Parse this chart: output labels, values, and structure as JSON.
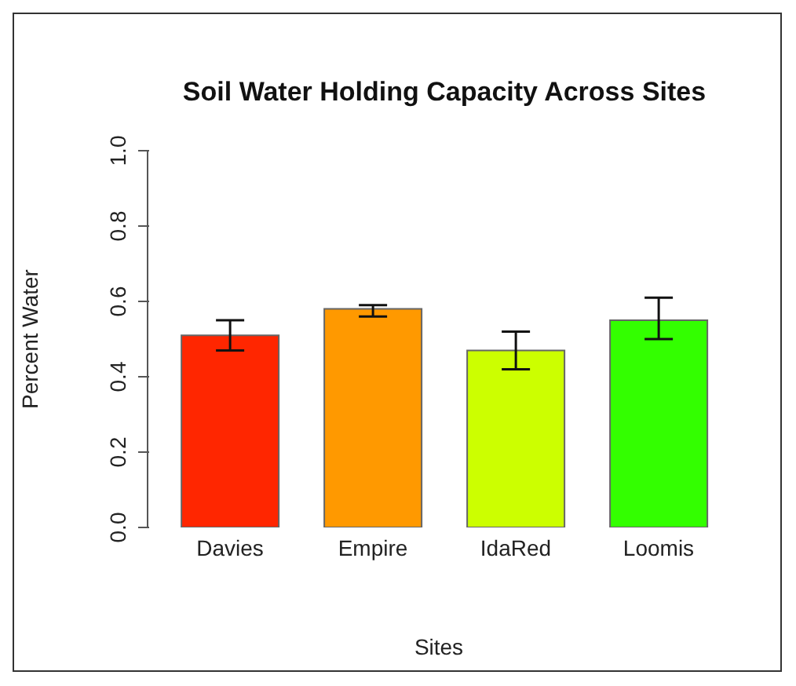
{
  "chart_data": {
    "type": "bar",
    "title": "Soil Water Holding Capacity Across Sites",
    "xlabel": "Sites",
    "ylabel": "Percent Water",
    "categories": [
      "Davies",
      "Empire",
      "IdaRed",
      "Loomis"
    ],
    "values": [
      0.51,
      0.58,
      0.47,
      0.55
    ],
    "colors": [
      "#ff2600",
      "#ff9900",
      "#ccff00",
      "#33ff00"
    ],
    "errors": [
      [
        0.47,
        0.55
      ],
      [
        0.56,
        0.59
      ],
      [
        0.42,
        0.52
      ],
      [
        0.5,
        0.61
      ]
    ],
    "ylim": [
      0,
      1
    ],
    "yticks": [
      {
        "value": 0,
        "label": "0.0"
      },
      0.2,
      0.4,
      0.6,
      0.8,
      {
        "value": 1,
        "label": "1.0"
      }
    ]
  }
}
